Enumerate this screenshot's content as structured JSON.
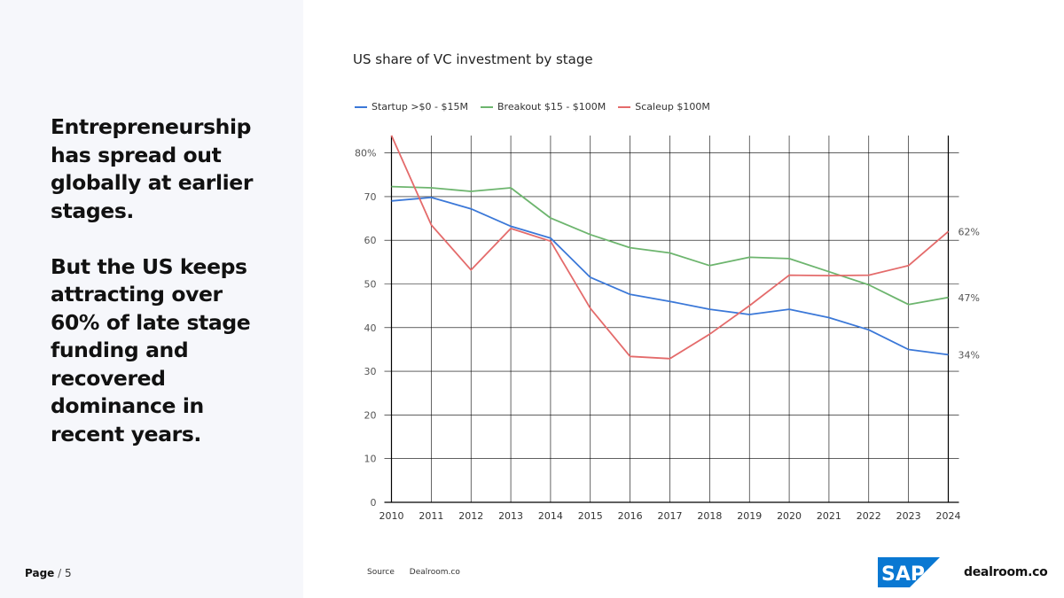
{
  "slide": {
    "headline_lines_1": [
      "Entrepreneurship",
      "has spread out",
      "globally at earlier",
      "stages."
    ],
    "headline_lines_2": [
      "But the US keeps",
      "attracting over",
      "60% of late stage",
      "funding and",
      "recovered",
      "dominance in",
      "recent years."
    ],
    "page_label": "Page",
    "page_sep": "/",
    "page_number": "5",
    "source_label": "Source",
    "source_value": "Dealroom.co",
    "brand_sap": "SAP",
    "brand_dealroom": "dealroom.co"
  },
  "colors": {
    "startup": "#3b78d8",
    "breakout": "#6db56e",
    "scaleup": "#e46b6b",
    "sap_blue": "#0a78d2",
    "grid": "#000000",
    "left_panel_bg": "#f6f7fb"
  },
  "chart_data": {
    "type": "line",
    "title": "US share of VC investment by stage",
    "xlabel": "",
    "ylabel": "",
    "x": [
      2010,
      2011,
      2012,
      2013,
      2014,
      2015,
      2016,
      2017,
      2018,
      2019,
      2020,
      2021,
      2022,
      2023,
      2024
    ],
    "ylim": [
      0,
      85
    ],
    "y_ticks": [
      0,
      10,
      20,
      30,
      40,
      50,
      60,
      70,
      80
    ],
    "y_tick_labels": [
      "0",
      "10",
      "20",
      "30",
      "40",
      "50",
      "60",
      "70",
      "80%"
    ],
    "grid": true,
    "legend_position": "top-left",
    "series": [
      {
        "name": "Startup >$0 - $15M",
        "color": "#3b78d8",
        "values": [
          69,
          69.8,
          67.2,
          63.2,
          60.5,
          51.5,
          47.6,
          46,
          44.2,
          43,
          44.2,
          42.3,
          39.5,
          35,
          33.8
        ],
        "end_label": "34%"
      },
      {
        "name": "Breakout $15 - $100M",
        "color": "#6db56e",
        "values": [
          72.3,
          72,
          71.2,
          72,
          65.1,
          61.3,
          58.3,
          57.1,
          54.2,
          56.1,
          55.8,
          52.8,
          49.8,
          45.3,
          46.9
        ],
        "end_label": "47%"
      },
      {
        "name": "Scaleup $100M",
        "color": "#e46b6b",
        "values": [
          84,
          63.5,
          53.2,
          62.7,
          59.8,
          44.4,
          33.4,
          32.9,
          38.5,
          45,
          52,
          51.9,
          52,
          54.2,
          62
        ],
        "end_label": "62%"
      }
    ]
  }
}
